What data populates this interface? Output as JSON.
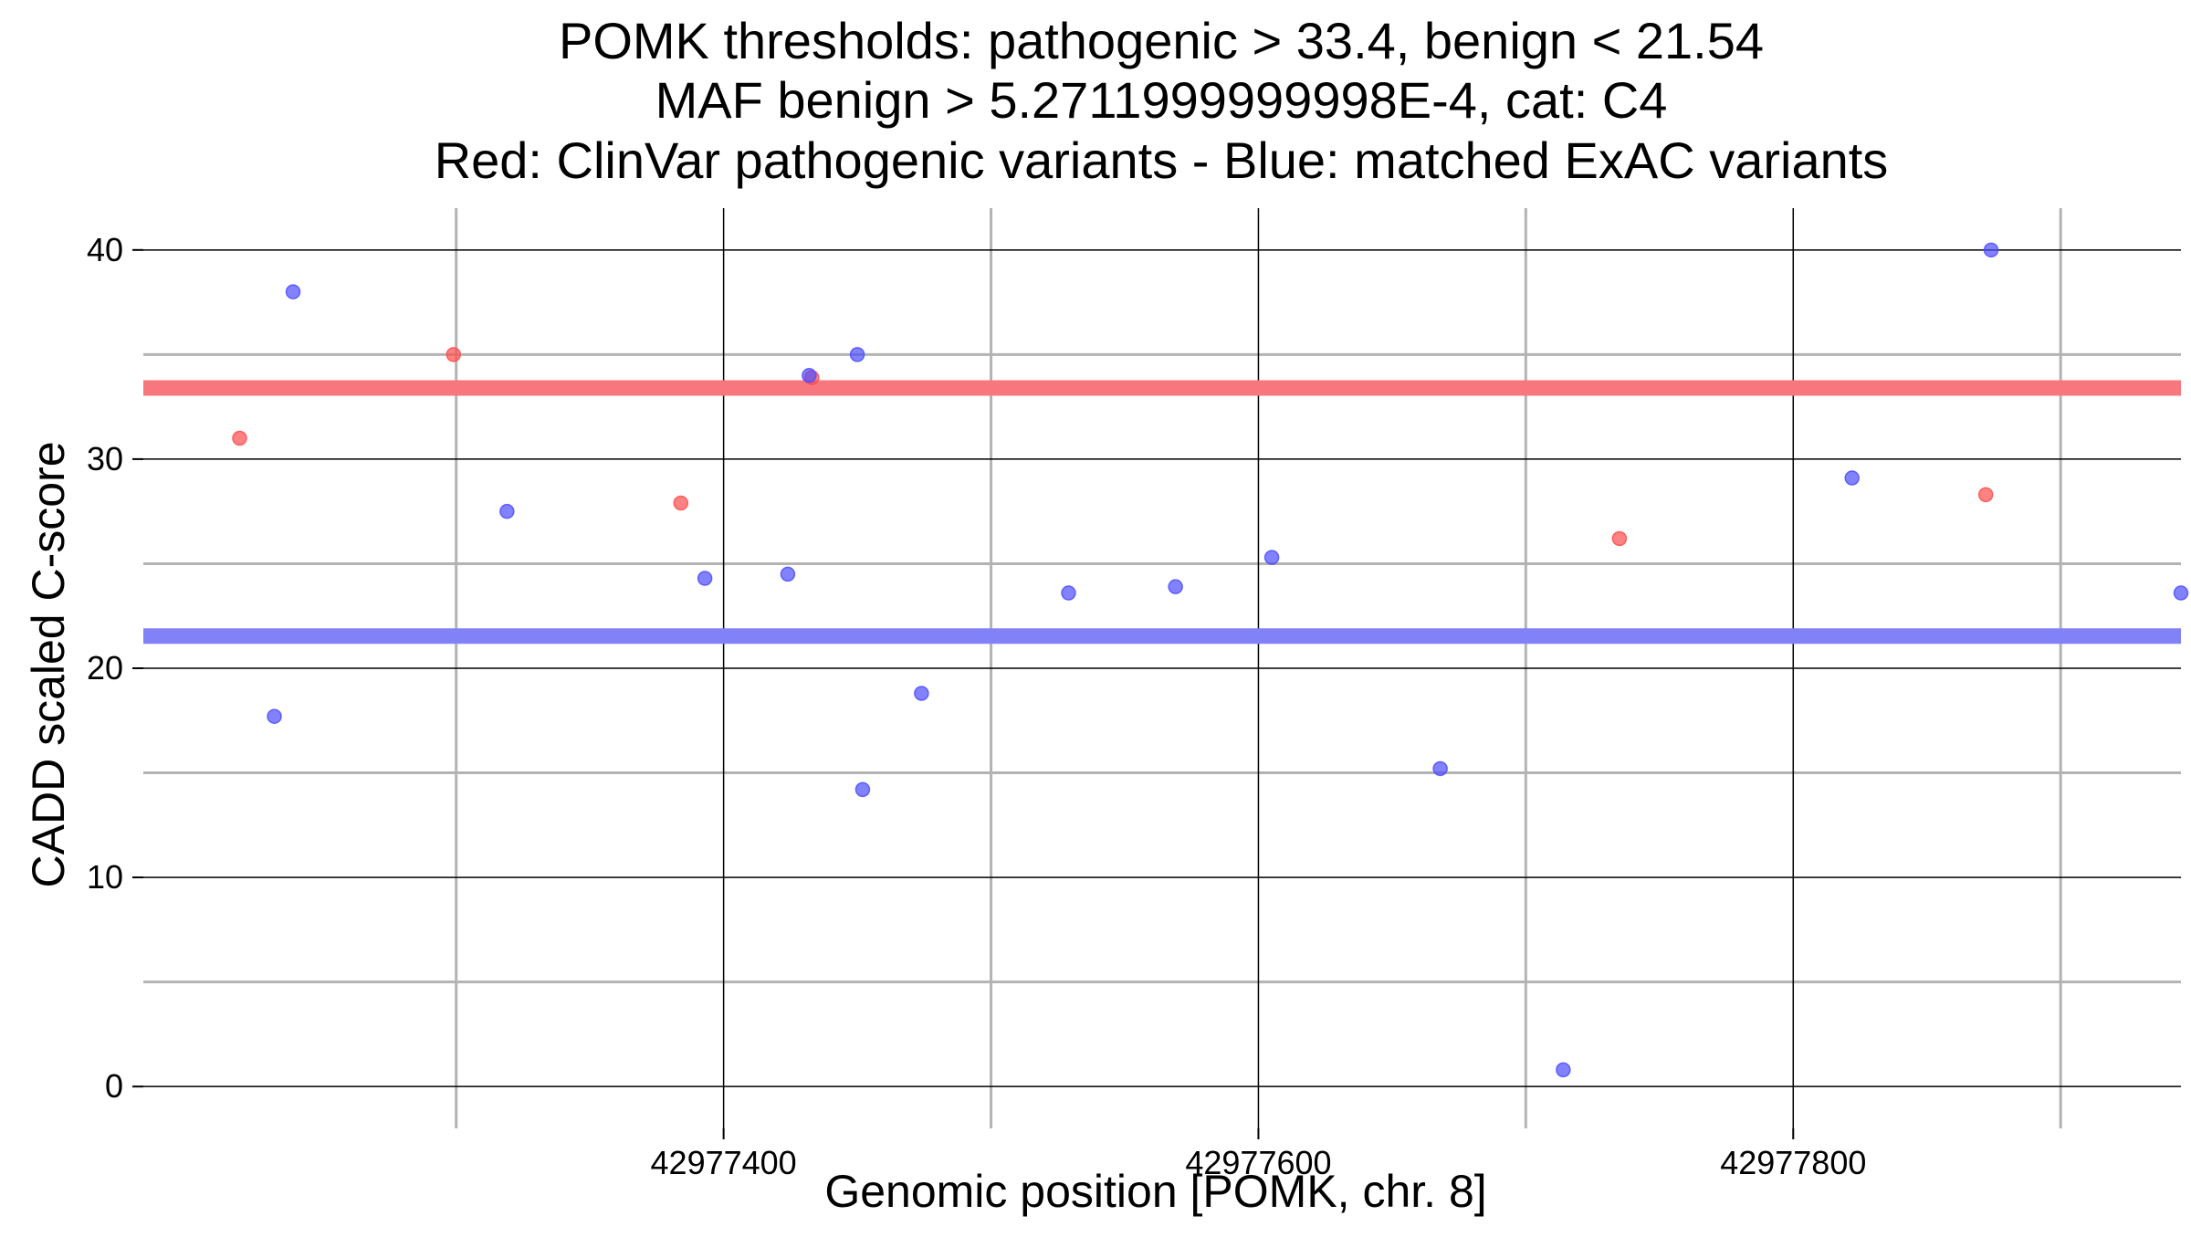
{
  "chart_data": {
    "type": "scatter",
    "title": [
      "POMK thresholds: pathogenic > 33.4, benign < 21.54",
      "MAF benign > 5.2711999999998E-4, cat: C4",
      "Red: ClinVar pathogenic variants - Blue: matched ExAC variants"
    ],
    "xlabel": "Genomic position [POMK, chr. 8]",
    "ylabel": "CADD scaled C-score",
    "xlim": [
      42977183,
      42977945
    ],
    "ylim": [
      -2,
      42
    ],
    "x_ticks": [
      42977400,
      42977600,
      42977800
    ],
    "x_tick_labels": [
      "42977400",
      "42977600",
      "42977800"
    ],
    "x_minor_ticks": [
      42977300,
      42977500,
      42977700,
      42977900
    ],
    "y_ticks": [
      0,
      10,
      20,
      30,
      40
    ],
    "y_tick_labels": [
      "0",
      "10",
      "20",
      "30",
      "40"
    ],
    "y_minor_ticks": [
      5,
      15,
      25,
      35
    ],
    "grid": true,
    "thresholds": [
      {
        "name": "pathogenic",
        "value": 33.4,
        "color": "#f8767d"
      },
      {
        "name": "benign",
        "value": 21.54,
        "color": "#8282f8"
      }
    ],
    "series": [
      {
        "color": "#ff4d4d",
        "points": [
          {
            "x": 42977219,
            "y": 31.0
          },
          {
            "x": 42977299,
            "y": 35.0
          },
          {
            "x": 42977384,
            "y": 27.9
          },
          {
            "x": 42977433,
            "y": 33.9
          },
          {
            "x": 42977735,
            "y": 26.2
          },
          {
            "x": 42977872,
            "y": 28.3
          }
        ]
      },
      {
        "color": "#4d4dff",
        "points": [
          {
            "x": 42977232,
            "y": 17.7
          },
          {
            "x": 42977239,
            "y": 38.0
          },
          {
            "x": 42977319,
            "y": 27.5
          },
          {
            "x": 42977393,
            "y": 24.3
          },
          {
            "x": 42977424,
            "y": 24.5
          },
          {
            "x": 42977432,
            "y": 34.0
          },
          {
            "x": 42977450,
            "y": 35.0
          },
          {
            "x": 42977452,
            "y": 14.2
          },
          {
            "x": 42977474,
            "y": 18.8
          },
          {
            "x": 42977529,
            "y": 23.6
          },
          {
            "x": 42977569,
            "y": 23.9
          },
          {
            "x": 42977605,
            "y": 25.3
          },
          {
            "x": 42977668,
            "y": 15.2
          },
          {
            "x": 42977714,
            "y": 0.8
          },
          {
            "x": 42977822,
            "y": 29.1
          },
          {
            "x": 42977874,
            "y": 40.0
          },
          {
            "x": 42977945,
            "y": 23.6
          }
        ]
      }
    ]
  }
}
